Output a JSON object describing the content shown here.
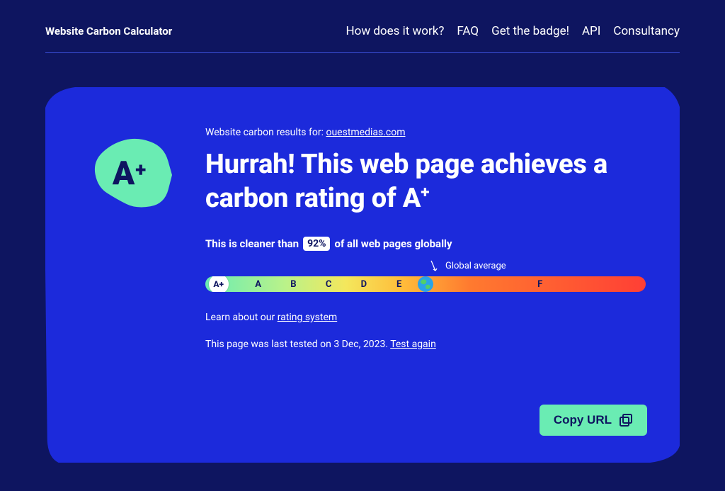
{
  "colors": {
    "page_bg": "#0e1560",
    "card_bg": "#1c2adb",
    "accent_mint": "#6aecb3",
    "text_on_dark": "#ffffff",
    "text_on_mint": "#0e1560",
    "hr": "#3a4fd9",
    "globe_ocean": "#2aa3e8",
    "globe_land": "#4fcf6b"
  },
  "brand": "Website Carbon Calculator",
  "nav": {
    "items": [
      {
        "label": "How does it work?"
      },
      {
        "label": "FAQ"
      },
      {
        "label": "Get the badge!"
      },
      {
        "label": "API"
      },
      {
        "label": "Consultancy"
      }
    ]
  },
  "results": {
    "prefix": "Website carbon results for: ",
    "domain": "ouestmedias.com"
  },
  "grade_badge": {
    "letter": "A",
    "plus": "+",
    "fill": "#6aecb3",
    "text_color": "#0e1560"
  },
  "headline": {
    "text_before_grade": "Hurrah! This web page achieves a carbon rating of ",
    "grade_letter": "A",
    "grade_plus": "+"
  },
  "cleaner": {
    "before": "This is cleaner than",
    "percent": "92%",
    "after": "of all web pages globally",
    "chip_bg": "#ffffff",
    "chip_text": "#0e1560"
  },
  "scale": {
    "gradient_stops": [
      {
        "offset": 0,
        "color": "#6aecb3"
      },
      {
        "offset": 18,
        "color": "#b9f28a"
      },
      {
        "offset": 32,
        "color": "#f4e75c"
      },
      {
        "offset": 45,
        "color": "#ffbb3a"
      },
      {
        "offset": 60,
        "color": "#ff7a2f"
      },
      {
        "offset": 100,
        "color": "#ff3f35"
      }
    ],
    "marker": {
      "label": "A+",
      "percent": 3,
      "diameter": 28
    },
    "ticks": [
      {
        "label": "A",
        "percent": 12
      },
      {
        "label": "B",
        "percent": 20
      },
      {
        "label": "C",
        "percent": 28
      },
      {
        "label": "D",
        "percent": 36
      },
      {
        "label": "E",
        "percent": 44
      },
      {
        "label": "F",
        "percent": 76
      }
    ],
    "global_average": {
      "label": "Global average",
      "percent": 50
    }
  },
  "learn": {
    "before": "Learn about our ",
    "link": "rating system"
  },
  "tested": {
    "before": "This page was last tested on ",
    "date": "3 Dec, 2023",
    "sep": ". ",
    "link": "Test again"
  },
  "copy_url": {
    "label": "Copy URL",
    "bg": "#6aecb3",
    "text": "#0e1560"
  }
}
